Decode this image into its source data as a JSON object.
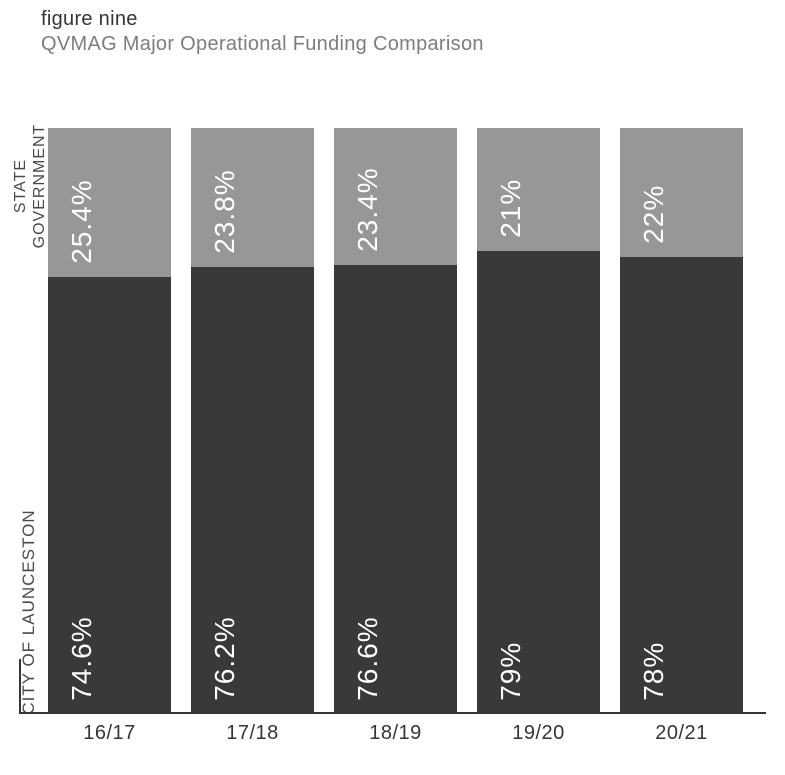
{
  "header": {
    "figure_label": "figure nine",
    "title": "QVMAG Major Operational Funding Comparison"
  },
  "colors": {
    "city_segment": "#39393b",
    "state_segment": "#97979a",
    "bar_label_text": "#ffffff",
    "axis_line": "#353537",
    "figure_label_text": "#353537",
    "title_text": "#7d7d80",
    "category_text": "#353537",
    "side_label_text": "#4a4a4c"
  },
  "axis": {
    "state_label_line1": "STATE",
    "state_label_line2": "GOVERNMENT",
    "city_label": "CITY OF LAUNCESTON"
  },
  "chart_data": {
    "type": "bar",
    "stacked": true,
    "title": "QVMAG Major Operational Funding Comparison",
    "figure_label": "figure nine",
    "categories": [
      "16/17",
      "17/18",
      "18/19",
      "19/20",
      "20/21"
    ],
    "series": [
      {
        "name": "CITY OF LAUNCESTON",
        "values": [
          74.6,
          76.2,
          76.6,
          79,
          78
        ],
        "labels": [
          "74.6%",
          "76.2%",
          "76.6%",
          "79%",
          "78%"
        ],
        "color": "#39393b"
      },
      {
        "name": "STATE GOVERNMENT",
        "values": [
          25.4,
          23.8,
          23.4,
          21,
          22
        ],
        "labels": [
          "25.4%",
          "23.8%",
          "23.4%",
          "21%",
          "22%"
        ],
        "color": "#97979a"
      }
    ],
    "ylim": [
      0,
      100
    ],
    "grid": false,
    "legend_position": "left-axis-vertical",
    "value_label_rotation": -90
  }
}
